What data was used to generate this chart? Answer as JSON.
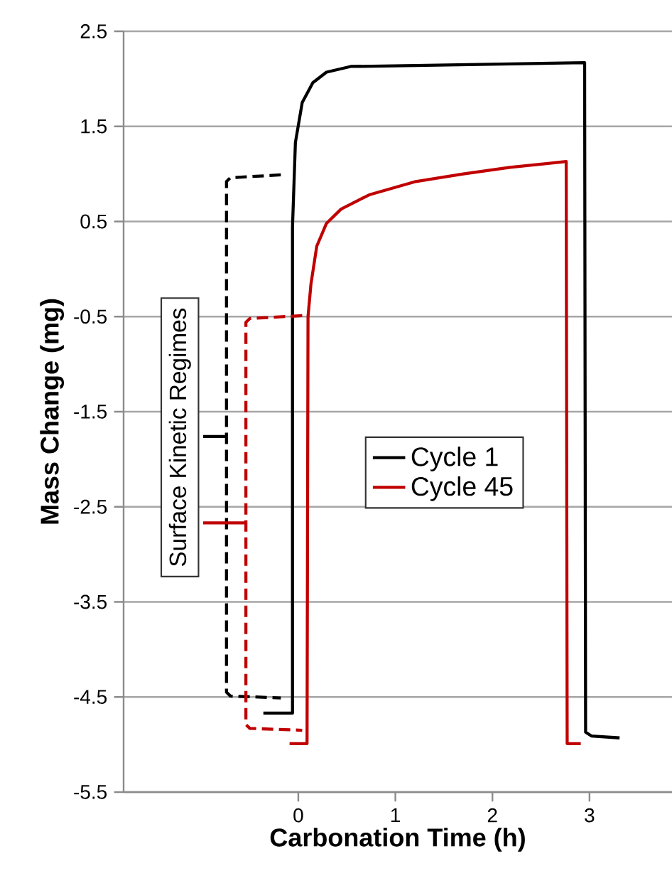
{
  "chart_data": {
    "type": "line",
    "xlabel": "Carbonation Time (h)",
    "ylabel": "Mass Change (mg)",
    "xlim": [
      -1.8,
      3.85
    ],
    "xticks": [
      0,
      1,
      2,
      3
    ],
    "ylim": [
      -5.5,
      2.5
    ],
    "yticks": [
      -5.5,
      -4.5,
      -3.5,
      -2.5,
      -1.5,
      -0.5,
      0.5,
      1.5,
      2.5
    ],
    "grid": "y",
    "legend": "center",
    "line_style": "solid",
    "marker": "none",
    "annotations": [
      "Surface Kinetic Regimes"
    ],
    "series": [
      {
        "name": "Cycle 1",
        "color": "#000000",
        "x": [
          -0.36,
          -0.06,
          -0.06,
          -0.03,
          0.04,
          0.15,
          0.29,
          0.54,
          1.21,
          2.95,
          2.96,
          3.02,
          3.31
        ],
        "values": [
          -4.67,
          -4.67,
          0.44,
          1.33,
          1.75,
          1.96,
          2.07,
          2.13,
          2.14,
          2.17,
          -4.87,
          -4.91,
          -4.93
        ]
      },
      {
        "name": "Cycle 45",
        "color": "#c00000",
        "x": [
          -0.09,
          0.09,
          0.1,
          0.13,
          0.19,
          0.29,
          0.44,
          0.73,
          1.21,
          1.7,
          2.18,
          2.76,
          2.77,
          2.91
        ],
        "values": [
          -4.99,
          -4.99,
          -0.5,
          -0.16,
          0.24,
          0.48,
          0.63,
          0.78,
          0.92,
          1.0,
          1.07,
          1.13,
          -4.99,
          -4.99
        ]
      },
      {
        "color": "#000000",
        "line_style": "dashed",
        "x": [
          -0.18,
          -0.7,
          -0.74,
          -0.74,
          -0.7,
          -0.18
        ],
        "values": [
          0.99,
          0.96,
          0.92,
          -4.45,
          -4.49,
          -4.51
        ]
      },
      {
        "color": "#c00000",
        "line_style": "dashed",
        "x": [
          0.04,
          -0.5,
          -0.54,
          -0.54,
          -0.5,
          0.04
        ],
        "values": [
          -0.49,
          -0.52,
          -0.56,
          -4.79,
          -4.83,
          -4.85
        ]
      },
      {
        "color": "#000000",
        "x": [
          -0.98,
          -0.74
        ],
        "values": [
          -1.76,
          -1.76
        ]
      },
      {
        "color": "#c00000",
        "x": [
          -0.98,
          -0.54
        ],
        "values": [
          -2.67,
          -2.67
        ]
      }
    ]
  }
}
